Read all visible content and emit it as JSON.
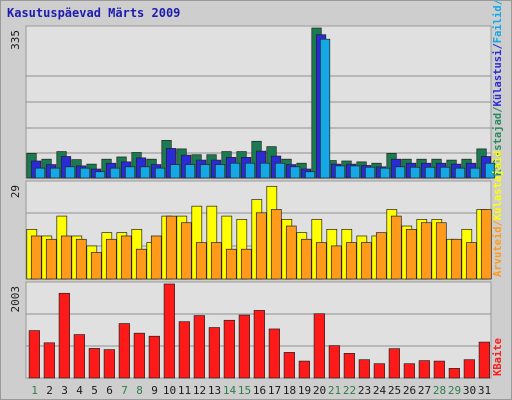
{
  "title": "Kasutuspäevad Märts 2009",
  "colors": {
    "background": "#cecece",
    "plot_background": "#e0e0e0",
    "gridline": "#8f8f8f",
    "title": "#1c1cb0",
    "weekday_label": "#1a1a1a",
    "weekend_label": "#2e7d4a"
  },
  "chart_data": [
    {
      "type": "bar",
      "panel": "top",
      "tick_label": "335",
      "ylim": [
        0,
        335
      ],
      "grid": true,
      "legend_placement": "right",
      "legend": [
        {
          "name": "Külastajad",
          "color": "#2a8a5e"
        },
        {
          "name": "Külastusi",
          "color": "#2b2bd6"
        },
        {
          "name": "Failid",
          "color": "#14a8e6"
        },
        {
          "name": "Pöördumisi",
          "color": "#1a7a50"
        }
      ],
      "legend_text": "Külastajad/Külastusi/Failid/Pöördumisi",
      "categories": [
        "1",
        "2",
        "3",
        "4",
        "5",
        "6",
        "7",
        "8",
        "9",
        "10",
        "11",
        "12",
        "13",
        "14",
        "15",
        "16",
        "17",
        "18",
        "19",
        "20",
        "21",
        "22",
        "23",
        "24",
        "25",
        "26",
        "27",
        "28",
        "29",
        "30",
        "31"
      ],
      "series": [
        {
          "name": "Pöördumisi",
          "color": "#1a7a50",
          "values": [
            55,
            42,
            59,
            41,
            31,
            42,
            47,
            57,
            42,
            84,
            65,
            52,
            52,
            59,
            59,
            82,
            70,
            42,
            33,
            335,
            39,
            38,
            36,
            33,
            55,
            42,
            42,
            42,
            40,
            42,
            65
          ]
        },
        {
          "name": "Külastusi",
          "color": "#2b2bd6",
          "values": [
            38,
            30,
            48,
            27,
            20,
            33,
            36,
            45,
            30,
            66,
            51,
            40,
            40,
            46,
            46,
            60,
            49,
            30,
            20,
            320,
            31,
            31,
            28,
            25,
            42,
            33,
            33,
            33,
            31,
            33,
            48
          ]
        },
        {
          "name": "Failid",
          "color": "#14a8e6",
          "values": [
            22,
            22,
            25,
            22,
            14,
            22,
            25,
            25,
            22,
            30,
            30,
            30,
            30,
            33,
            33,
            33,
            33,
            25,
            14,
            310,
            27,
            27,
            24,
            22,
            25,
            24,
            24,
            24,
            22,
            22,
            33
          ]
        }
      ]
    },
    {
      "type": "bar",
      "panel": "middle",
      "tick_label": "29",
      "ylim": [
        0,
        29
      ],
      "grid": true,
      "legend_placement": "right",
      "legend": [
        {
          "name": "Arvuteid",
          "color": "#ff9a1a"
        },
        {
          "name": "Külastajaid",
          "color": "#ffff00"
        }
      ],
      "legend_text": "Arvuteid / Külastajaid",
      "categories": [
        "1",
        "2",
        "3",
        "4",
        "5",
        "6",
        "7",
        "8",
        "9",
        "10",
        "11",
        "12",
        "13",
        "14",
        "15",
        "16",
        "17",
        "18",
        "19",
        "20",
        "21",
        "22",
        "23",
        "24",
        "25",
        "26",
        "27",
        "28",
        "29",
        "30",
        "31"
      ],
      "series": [
        {
          "name": "Külastajaid",
          "color": "#ffff00",
          "values": [
            15,
            13,
            19,
            13,
            10,
            14,
            14,
            15,
            11,
            19,
            19,
            22,
            22,
            19,
            18,
            24,
            28,
            18,
            14,
            18,
            15,
            15,
            13,
            13,
            21,
            16,
            18,
            18,
            12,
            15,
            21
          ]
        },
        {
          "name": "Arvuteid",
          "color": "#ff9a1a",
          "values": [
            13,
            12,
            13,
            12,
            8,
            12,
            13,
            9,
            13,
            19,
            17,
            11,
            11,
            9,
            9,
            20,
            21,
            16,
            12,
            11,
            10,
            11,
            11,
            14,
            19,
            15,
            17,
            17,
            12,
            11,
            21
          ]
        }
      ]
    },
    {
      "type": "bar",
      "panel": "bottom",
      "tick_label": "2003",
      "ylim": [
        0,
        2003
      ],
      "grid": true,
      "legend_placement": "right",
      "legend": [
        {
          "name": "KBaite",
          "color": "#ff1a1a"
        }
      ],
      "legend_text": "KBaite",
      "categories": [
        "1",
        "2",
        "3",
        "4",
        "5",
        "6",
        "7",
        "8",
        "9",
        "10",
        "11",
        "12",
        "13",
        "14",
        "15",
        "16",
        "17",
        "18",
        "19",
        "20",
        "21",
        "22",
        "23",
        "24",
        "25",
        "26",
        "27",
        "28",
        "29",
        "30",
        "31"
      ],
      "series": [
        {
          "name": "KBaite",
          "color": "#ff1a1a",
          "values": [
            1010,
            750,
            1805,
            925,
            630,
            605,
            1160,
            955,
            890,
            2003,
            1200,
            1330,
            1075,
            1230,
            1340,
            1440,
            1045,
            545,
            360,
            1370,
            690,
            525,
            390,
            305,
            625,
            305,
            370,
            360,
            205,
            390,
            765
          ]
        }
      ]
    }
  ],
  "weekend_days": [
    1,
    7,
    8,
    14,
    15,
    21,
    22,
    28,
    29
  ]
}
